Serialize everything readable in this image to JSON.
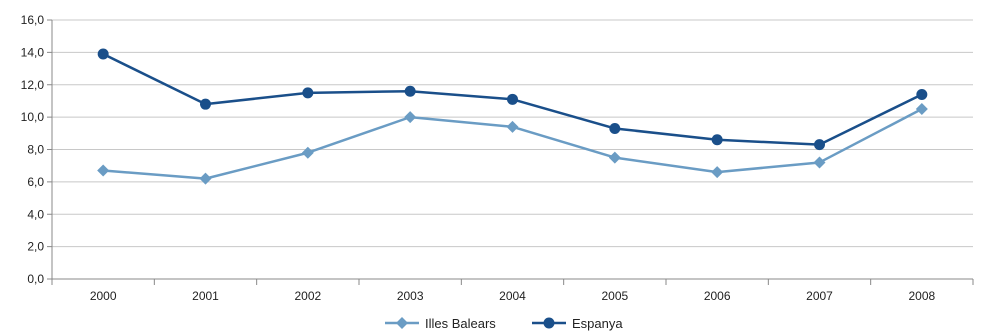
{
  "chart_data": {
    "type": "line",
    "categories": [
      "2000",
      "2001",
      "2002",
      "2003",
      "2004",
      "2005",
      "2006",
      "2007",
      "2008"
    ],
    "series": [
      {
        "name": "Illes Balears",
        "values": [
          6.7,
          6.2,
          7.8,
          10.0,
          9.4,
          7.5,
          6.6,
          7.2,
          10.5
        ],
        "color": "#6a9cc4",
        "marker": "diamond"
      },
      {
        "name": "Espanya",
        "values": [
          13.9,
          10.8,
          11.5,
          11.6,
          11.1,
          9.3,
          8.6,
          8.3,
          11.4
        ],
        "color": "#1a4f8a",
        "marker": "circle"
      }
    ],
    "yticks": [
      "0,0",
      "2,0",
      "4,0",
      "6,0",
      "8,0",
      "10,0",
      "12,0",
      "14,0",
      "16,0"
    ],
    "ylim": [
      0,
      16
    ],
    "grid": true,
    "legend_position": "bottom",
    "gridline_color": "#c8c8c8",
    "axis_color": "#888888"
  }
}
